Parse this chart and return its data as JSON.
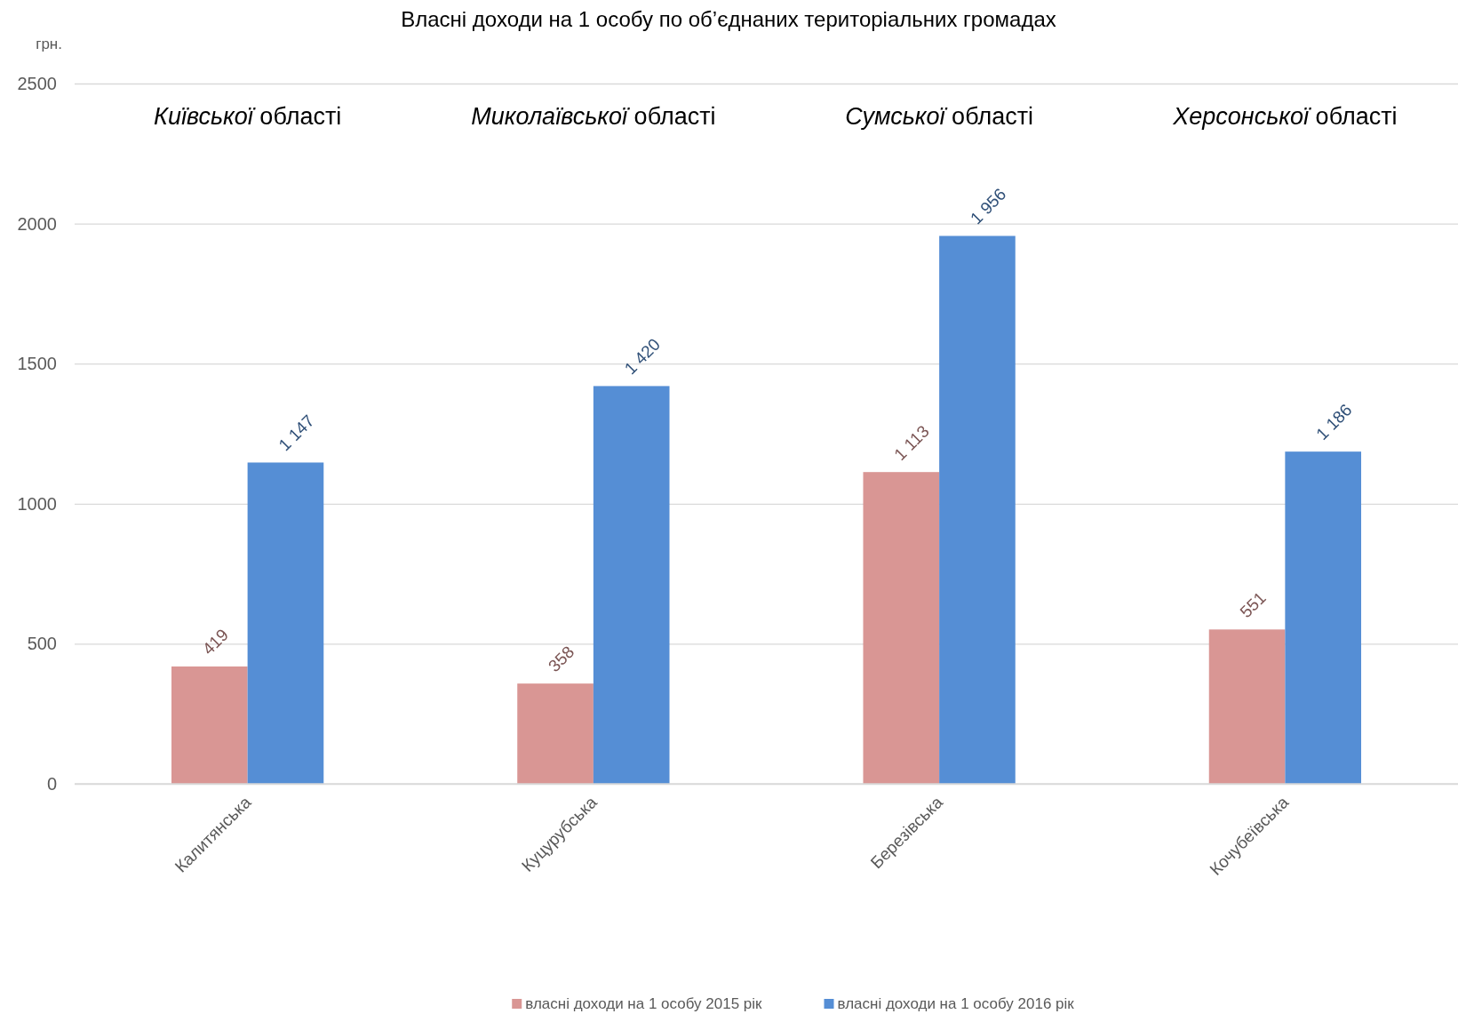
{
  "chart_data": {
    "type": "bar",
    "title": "Власні доходи на 1 особу по об’єднаних територіальних громадах",
    "ylabel": "грн.",
    "categories": [
      "Калитянська",
      "Куцурубська",
      "Березівська",
      "Кочубеївська"
    ],
    "series": [
      {
        "name": "власні доходи на 1 особу 2015 рік",
        "color": "#d99694",
        "values": [
          419,
          358,
          1113,
          551
        ],
        "value_labels": [
          "419",
          "358",
          "1 113",
          "551"
        ]
      },
      {
        "name": "власні доходи на 1 особу 2016 рік",
        "color": "#558ed5",
        "values": [
          1147,
          1420,
          1956,
          1186
        ],
        "value_labels": [
          "1 147",
          "1 420",
          "1 956",
          "1 186"
        ]
      }
    ],
    "annotations": [
      "Київської області",
      "Миколаївської області",
      "Сумської області",
      "Херсонської області"
    ],
    "ylim": [
      0,
      2500
    ],
    "yticks": [
      0,
      500,
      1000,
      1500,
      2000,
      2500
    ],
    "grid": "y",
    "legend": "bottom"
  }
}
